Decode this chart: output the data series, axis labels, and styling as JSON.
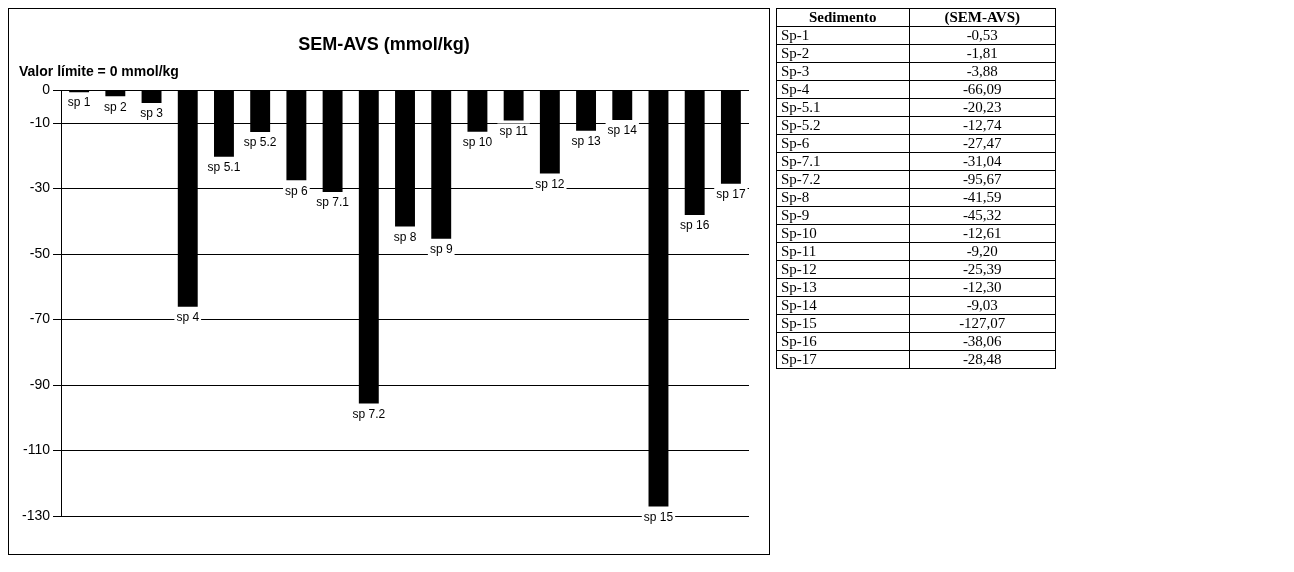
{
  "chart_data": [
    {
      "type": "bar",
      "title": "SEM-AVS (mmol/kg)",
      "subtitle": "Valor límite = 0 mmol/kg",
      "categories": [
        "sp 1",
        "sp 2",
        "sp 3",
        "sp 4",
        "sp 5.1",
        "sp 5.2",
        "sp 6",
        "sp 7.1",
        "sp 7.2",
        "sp 8",
        "sp 9",
        "sp 10",
        "sp 11",
        "sp 12",
        "sp 13",
        "sp 14",
        "sp 15",
        "sp 16",
        "sp 17"
      ],
      "values": [
        -0.53,
        -1.81,
        -3.88,
        -66.09,
        -20.23,
        -12.74,
        -27.47,
        -31.04,
        -95.67,
        -41.59,
        -45.32,
        -12.61,
        -9.2,
        -25.39,
        -12.3,
        -9.03,
        -127.07,
        -38.06,
        -28.48
      ],
      "color": "#000000",
      "ylim": [
        -130,
        0
      ],
      "yticks": [
        0,
        -10,
        -30,
        -50,
        -70,
        -90,
        -110,
        -130
      ],
      "grid": "y",
      "legend": false
    },
    {
      "type": "other",
      "annotations": [
        "Sedimento",
        "(SEM-AVS)"
      ],
      "categories": [
        "Sp-1",
        "Sp-2",
        "Sp-3",
        "Sp-4",
        "Sp-5.1",
        "Sp-5.2",
        "Sp-6",
        "Sp-7.1",
        "Sp-7.2",
        "Sp-8",
        "Sp-9",
        "Sp-10",
        "Sp-11",
        "Sp-12",
        "Sp-13",
        "Sp-14",
        "Sp-15",
        "Sp-16",
        "Sp-17"
      ],
      "value_labels": [
        "-0,53",
        "-1,81",
        "-3,88",
        "-66,09",
        "-20,23",
        "-12,74",
        "-27,47",
        "-31,04",
        "-95,67",
        "-41,59",
        "-45,32",
        "-12,61",
        "-9,20",
        "-25,39",
        "-12,30",
        "-9,03",
        "-127,07",
        "-38,06",
        "-28,48"
      ]
    }
  ]
}
